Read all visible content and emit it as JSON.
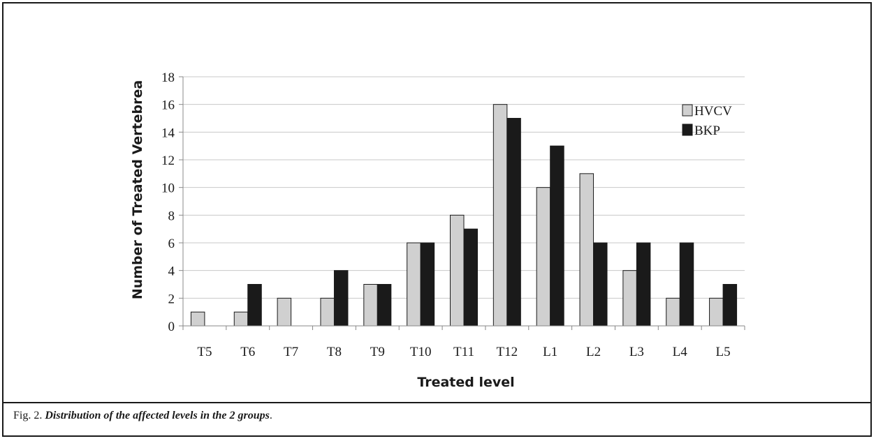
{
  "chart_data": {
    "type": "bar",
    "categories": [
      "T5",
      "T6",
      "T7",
      "T8",
      "T9",
      "T10",
      "T11",
      "T12",
      "L1",
      "L2",
      "L3",
      "L4",
      "L5"
    ],
    "series": [
      {
        "name": "HVCV",
        "values": [
          1,
          1,
          2,
          2,
          3,
          6,
          8,
          16,
          10,
          11,
          4,
          2,
          2
        ],
        "color": "#d0d0d0"
      },
      {
        "name": "BKP",
        "values": [
          0,
          3,
          0,
          4,
          3,
          6,
          7,
          15,
          13,
          6,
          6,
          6,
          3
        ],
        "color": "#1a1a1a"
      }
    ],
    "xlabel": "Treated level",
    "ylabel": "Number of Treated Vertebrea",
    "ylim": [
      0,
      18
    ],
    "yticks": [
      0,
      2,
      4,
      6,
      8,
      10,
      12,
      14,
      16,
      18
    ],
    "grid": true,
    "legend_position": "top-right"
  },
  "caption": {
    "prefix": "Fig. 2.",
    "title": "Distribution of the affected levels in the 2 groups",
    "suffix": "."
  }
}
